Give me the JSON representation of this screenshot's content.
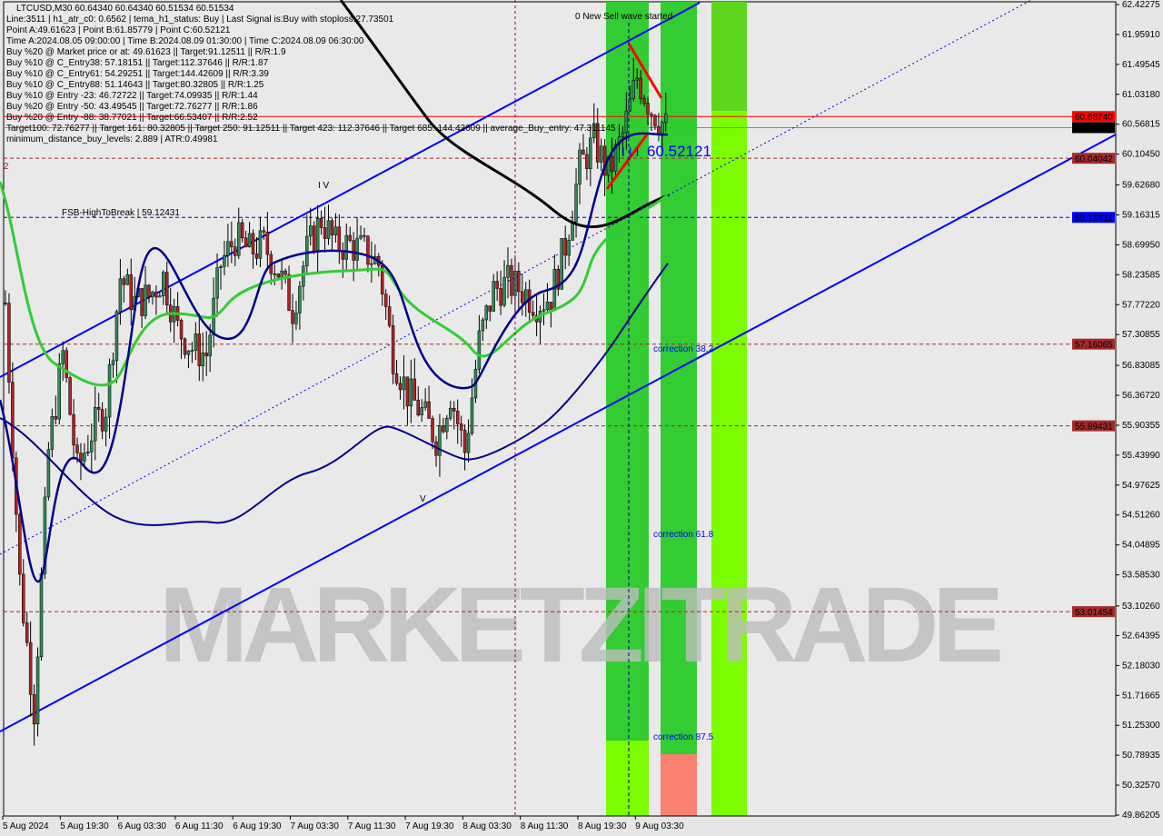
{
  "header": {
    "title": "LTCUSD,M30  60.64340 60.64340 60.51534 60.51534",
    "lines": [
      "Line:3511 | h1_atr_c0: 0.6562 | tema_h1_status: Buy | Last Signal is:Buy with stoploss:27.73501",
      "Point A:49.61623 | Point B:61.85779 | Point C:60.52121",
      "Time A:2024.08.05 09:00:00 | Time B:2024.08.09 01:30:00 | Time C:2024.08.09 06:30:00",
      "Buy %20 @ Market price or at: 49.61623 || Target:91.12511 || R/R:1.9",
      "Buy %10 @ C_Entry38: 57.18151 || Target:112.37646 || R/R:1.87",
      "Buy %10 @ C_Entry61: 54.29251 || Target:144.42609 || R/R:3.39",
      "Buy %10 @ C_Entry88: 51.14643 || Target:80.32805 || R/R:1.25",
      "Buy %10 @ Entry -23: 46.72722 || Target:74.09935 || R/R:1.44",
      "Buy %20 @ Entry -50: 43.49545 || Target:72.76277 || R/R:1.86",
      "Buy %20 @ Entry -88: 38.77021 || Target:66.53407 || R/R:2.52",
      "Target100: 72.76277 || Target 161: 80.32805 || Target 250: 91.12511 || Target 423: 112.37646 || Target 685: 144.42609 || average_Buy_entry: 47.311145",
      "minimum_distance_buy_levels: 2.889 | ATR:0.49981"
    ]
  },
  "annotations": {
    "sell_wave": "0 New Sell wave started",
    "point_c": "60.52121",
    "wave_iv": "I V",
    "wave_v": "V",
    "wave_iii": "I I I",
    "level_2": "2",
    "fsb": "FSB-HighToBreak | 59.12431",
    "corr382": "correction 38.2",
    "corr618": "correction 61.8",
    "corr875": "correction 87.5"
  },
  "watermark": "MARKETZITRADE",
  "colors": {
    "bull": "#2e8b57",
    "bear": "#b22222",
    "channel": "#0000ff",
    "ma_long": "#000000",
    "ma_green": "#32cd32",
    "ma_navy": "#00008b",
    "zone_green": "#33cc33",
    "zone_lime": "#7cfc00",
    "zone_pink": "#fa8072"
  },
  "chart_data": {
    "type": "candlestick",
    "symbol": "LTCUSD",
    "timeframe": "M30",
    "ylim": [
      49.86205,
      62.42275
    ],
    "y_ticks": [
      "62.42275",
      "61.95910",
      "61.49545",
      "61.03180",
      "60.56815",
      "60.10450",
      "59.62680",
      "59.16315",
      "58.69950",
      "58.23585",
      "57.77220",
      "57.30855",
      "56.83085",
      "56.36720",
      "55.90355",
      "55.43990",
      "54.97625",
      "54.51260",
      "54.04895",
      "53.58530",
      "53.10260",
      "52.64395",
      "52.18030",
      "51.71665",
      "51.25300",
      "50.78935",
      "50.32570",
      "49.86205"
    ],
    "x_ticks": [
      "5 Aug 2024",
      "5 Aug 19:30",
      "6 Aug 03:30",
      "6 Aug 11:30",
      "6 Aug 19:30",
      "7 Aug 03:30",
      "7 Aug 11:30",
      "7 Aug 19:30",
      "8 Aug 03:30",
      "8 Aug 11:30",
      "8 Aug 19:30",
      "9 Aug 03:30"
    ],
    "levels": [
      {
        "price": "60.68740",
        "style": "solid",
        "color": "#ff0000"
      },
      {
        "price": "60.51534",
        "style": "solid",
        "color": "#000000"
      },
      {
        "price": "60.04042",
        "style": "dashed",
        "color": "#a52a2a"
      },
      {
        "price": "59.12431",
        "style": "dashed",
        "color": "#0000ff"
      },
      {
        "price": "57.16065",
        "style": "dashed",
        "color": "#a52a2a"
      },
      {
        "price": "55.89431",
        "style": "dashed",
        "color": "#a52a2a"
      },
      {
        "price": "53.01454",
        "style": "dashed",
        "color": "#a52a2a"
      }
    ],
    "close_every_2h_from_5Aug_12_00": [
      57.8,
      53.5,
      51.5,
      55.5,
      57.0,
      55.2,
      55.8,
      56.2,
      58.2,
      57.8,
      57.9,
      58.2,
      57.4,
      57.1,
      57.0,
      58.4,
      58.8,
      58.6,
      58.7,
      58.3,
      57.7,
      58.6,
      59.1,
      58.7,
      58.7,
      58.6,
      58.4,
      57.0,
      56.4,
      56.1,
      55.7,
      56.4,
      55.5,
      57.2,
      58.0,
      58.1,
      58.0,
      57.8,
      57.9,
      58.7,
      59.9,
      60.3,
      59.8,
      60.4,
      61.3,
      60.8,
      60.52
    ]
  }
}
